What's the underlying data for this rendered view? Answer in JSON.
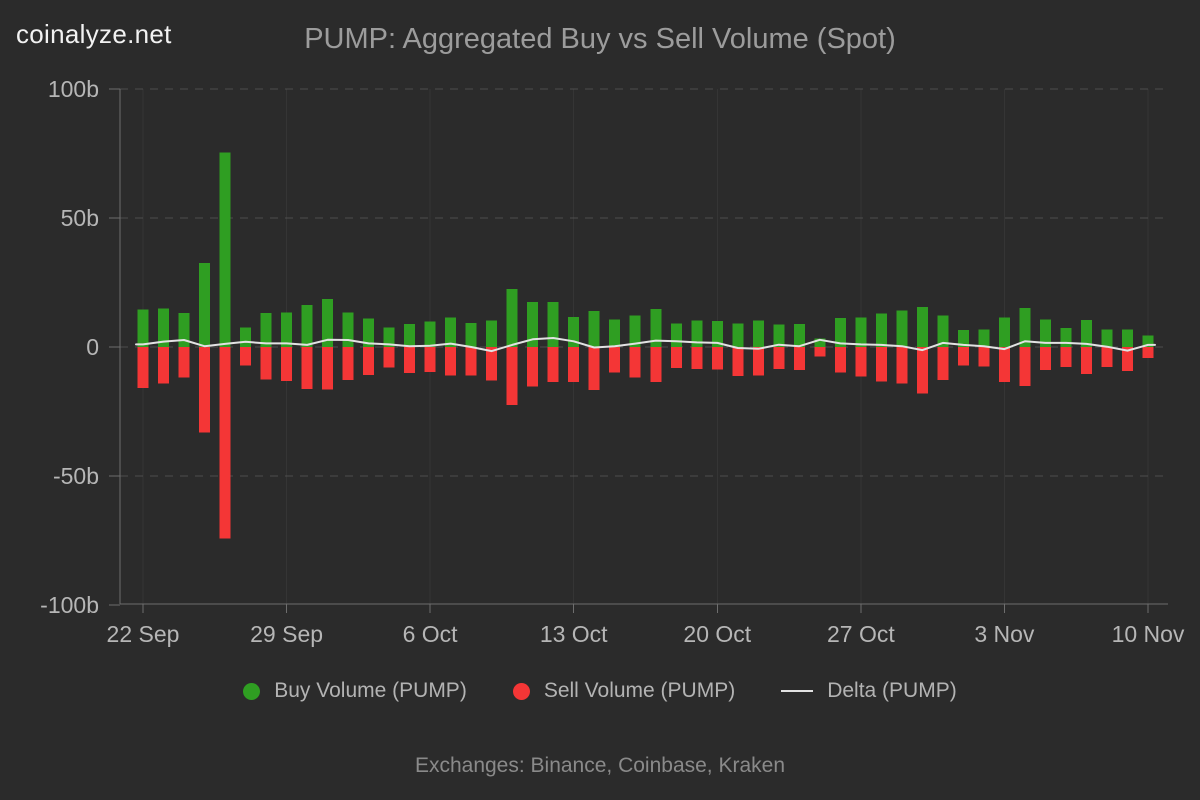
{
  "header": {
    "logo": "coinalyze.net",
    "title": "PUMP: Aggregated Buy vs Sell Volume (Spot)"
  },
  "legend": {
    "items": [
      {
        "label": "Buy Volume (PUMP)",
        "marker": "green-dot"
      },
      {
        "label": "Sell Volume (PUMP)",
        "marker": "red-dot"
      },
      {
        "label": "Delta (PUMP)",
        "marker": "white-line"
      }
    ]
  },
  "footer": {
    "text": "Exchanges: Binance, Coinbase, Kraken"
  },
  "chart_data": {
    "type": "bar",
    "title": "PUMP: Aggregated Buy vs Sell Volume (Spot)",
    "unit": "billions",
    "n_points": 50,
    "grid": true,
    "legend_position": "bottom",
    "y_axis": {
      "range": [
        -100,
        100
      ],
      "ticks": [
        {
          "label": "100b",
          "value": 100
        },
        {
          "label": "50b",
          "value": 50
        },
        {
          "label": "0",
          "value": 0
        },
        {
          "label": "-50b",
          "value": -50
        },
        {
          "label": "-100b",
          "value": -100
        }
      ]
    },
    "x_axis": {
      "tick_labels": [
        "22 Sep",
        "29 Sep",
        "6 Oct",
        "13 Oct",
        "20 Oct",
        "27 Oct",
        "3 Nov",
        "10 Nov"
      ],
      "tick_indices": [
        0,
        7,
        14,
        21,
        28,
        35,
        42,
        49
      ]
    },
    "colors": {
      "buy": "#2f9e22",
      "sell": "#f43636",
      "delta": "#e2e2e2",
      "background": "#2b2b2b"
    },
    "series": [
      {
        "name": "Buy Volume (PUMP)",
        "type": "bar",
        "color": "#2f9e22",
        "values": [
          14.6,
          14.9,
          13.1,
          32.5,
          75.3,
          7.5,
          13.1,
          13.3,
          16.3,
          18.6,
          13.3,
          11.0,
          7.5,
          9.0,
          9.9,
          11.5,
          9.3,
          10.3,
          22.4,
          17.4,
          17.4,
          11.6,
          14.0,
          10.7,
          12.2,
          14.8,
          9.2,
          10.2,
          10.1,
          9.2,
          10.3,
          8.8,
          9.0,
          3.2,
          11.2,
          11.4,
          13.0,
          14.1,
          15.5,
          12.3,
          6.5,
          6.7,
          11.4,
          15.2,
          10.6,
          7.3,
          10.5,
          6.8,
          6.7,
          4.5
        ]
      },
      {
        "name": "Sell Volume (PUMP)",
        "type": "bar",
        "color": "#f43636",
        "values": [
          -15.9,
          -14.2,
          -11.9,
          -33.1,
          -74.2,
          -7.1,
          -12.5,
          -13.2,
          -16.2,
          -16.5,
          -12.7,
          -10.8,
          -8.0,
          -10.1,
          -9.7,
          -11.0,
          -11.0,
          -12.9,
          -22.5,
          -15.4,
          -13.5,
          -13.5,
          -16.7,
          -9.9,
          -11.9,
          -13.5,
          -8.1,
          -8.6,
          -8.8,
          -11.2,
          -11.0,
          -8.5,
          -8.9,
          -3.6,
          -9.8,
          -11.5,
          -13.3,
          -14.1,
          -18.0,
          -12.7,
          -7.2,
          -7.6,
          -13.5,
          -15.2,
          -8.9,
          -7.7,
          -10.4,
          -7.8,
          -9.3,
          -4.3
        ]
      },
      {
        "name": "Delta (PUMP)",
        "type": "line",
        "color": "#e2e2e2",
        "values": [
          1.0,
          2.1,
          2.7,
          0.3,
          1.2,
          2.0,
          1.4,
          1.4,
          0.8,
          2.8,
          2.7,
          1.4,
          1.0,
          0.3,
          0.5,
          1.3,
          0.0,
          -1.6,
          0.8,
          3.0,
          3.5,
          2.2,
          -0.2,
          0.3,
          1.3,
          2.5,
          2.2,
          1.8,
          1.6,
          -0.4,
          -0.7,
          0.9,
          0.3,
          2.8,
          1.4,
          1.0,
          0.8,
          0.3,
          -1.2,
          1.6,
          0.8,
          0.3,
          -0.8,
          2.2,
          1.6,
          1.6,
          1.2,
          0.1,
          -1.4,
          0.8
        ]
      }
    ]
  }
}
